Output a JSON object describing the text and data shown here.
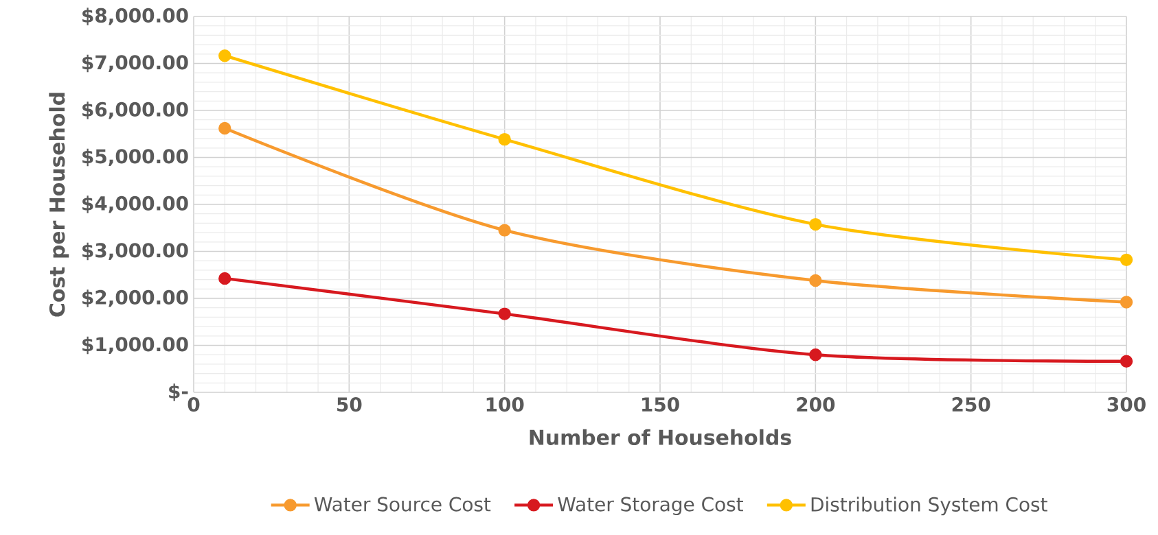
{
  "chart_data": {
    "type": "line",
    "xlabel": "Number of Households",
    "ylabel": "Cost per Household",
    "x": [
      10,
      100,
      200,
      300
    ],
    "series": [
      {
        "name": "Water Source Cost",
        "color": "#f79a2e",
        "values": [
          5620,
          3450,
          2380,
          1920
        ]
      },
      {
        "name": "Water Storage Cost",
        "color": "#d7191f",
        "values": [
          2425,
          1670,
          800,
          660
        ]
      },
      {
        "name": "Distribution System Cost",
        "color": "#ffc000",
        "values": [
          7165,
          5385,
          3575,
          2820
        ]
      }
    ],
    "xlim": [
      0,
      300
    ],
    "ylim": [
      0,
      8000
    ],
    "xticks": [
      0,
      50,
      100,
      150,
      200,
      250,
      300
    ],
    "yticks": [
      {
        "value": 0,
        "label": "$-"
      },
      {
        "value": 1000,
        "label": "$1,000.00"
      },
      {
        "value": 2000,
        "label": "$2,000.00"
      },
      {
        "value": 3000,
        "label": "$3,000.00"
      },
      {
        "value": 4000,
        "label": "$4,000.00"
      },
      {
        "value": 5000,
        "label": "$5,000.00"
      },
      {
        "value": 6000,
        "label": "$6,000.00"
      },
      {
        "value": 7000,
        "label": "$7,000.00"
      },
      {
        "value": 8000,
        "label": "$8,000.00"
      }
    ],
    "grid": true,
    "legend": "bottom",
    "marker": "circle",
    "line_style": "solid"
  }
}
